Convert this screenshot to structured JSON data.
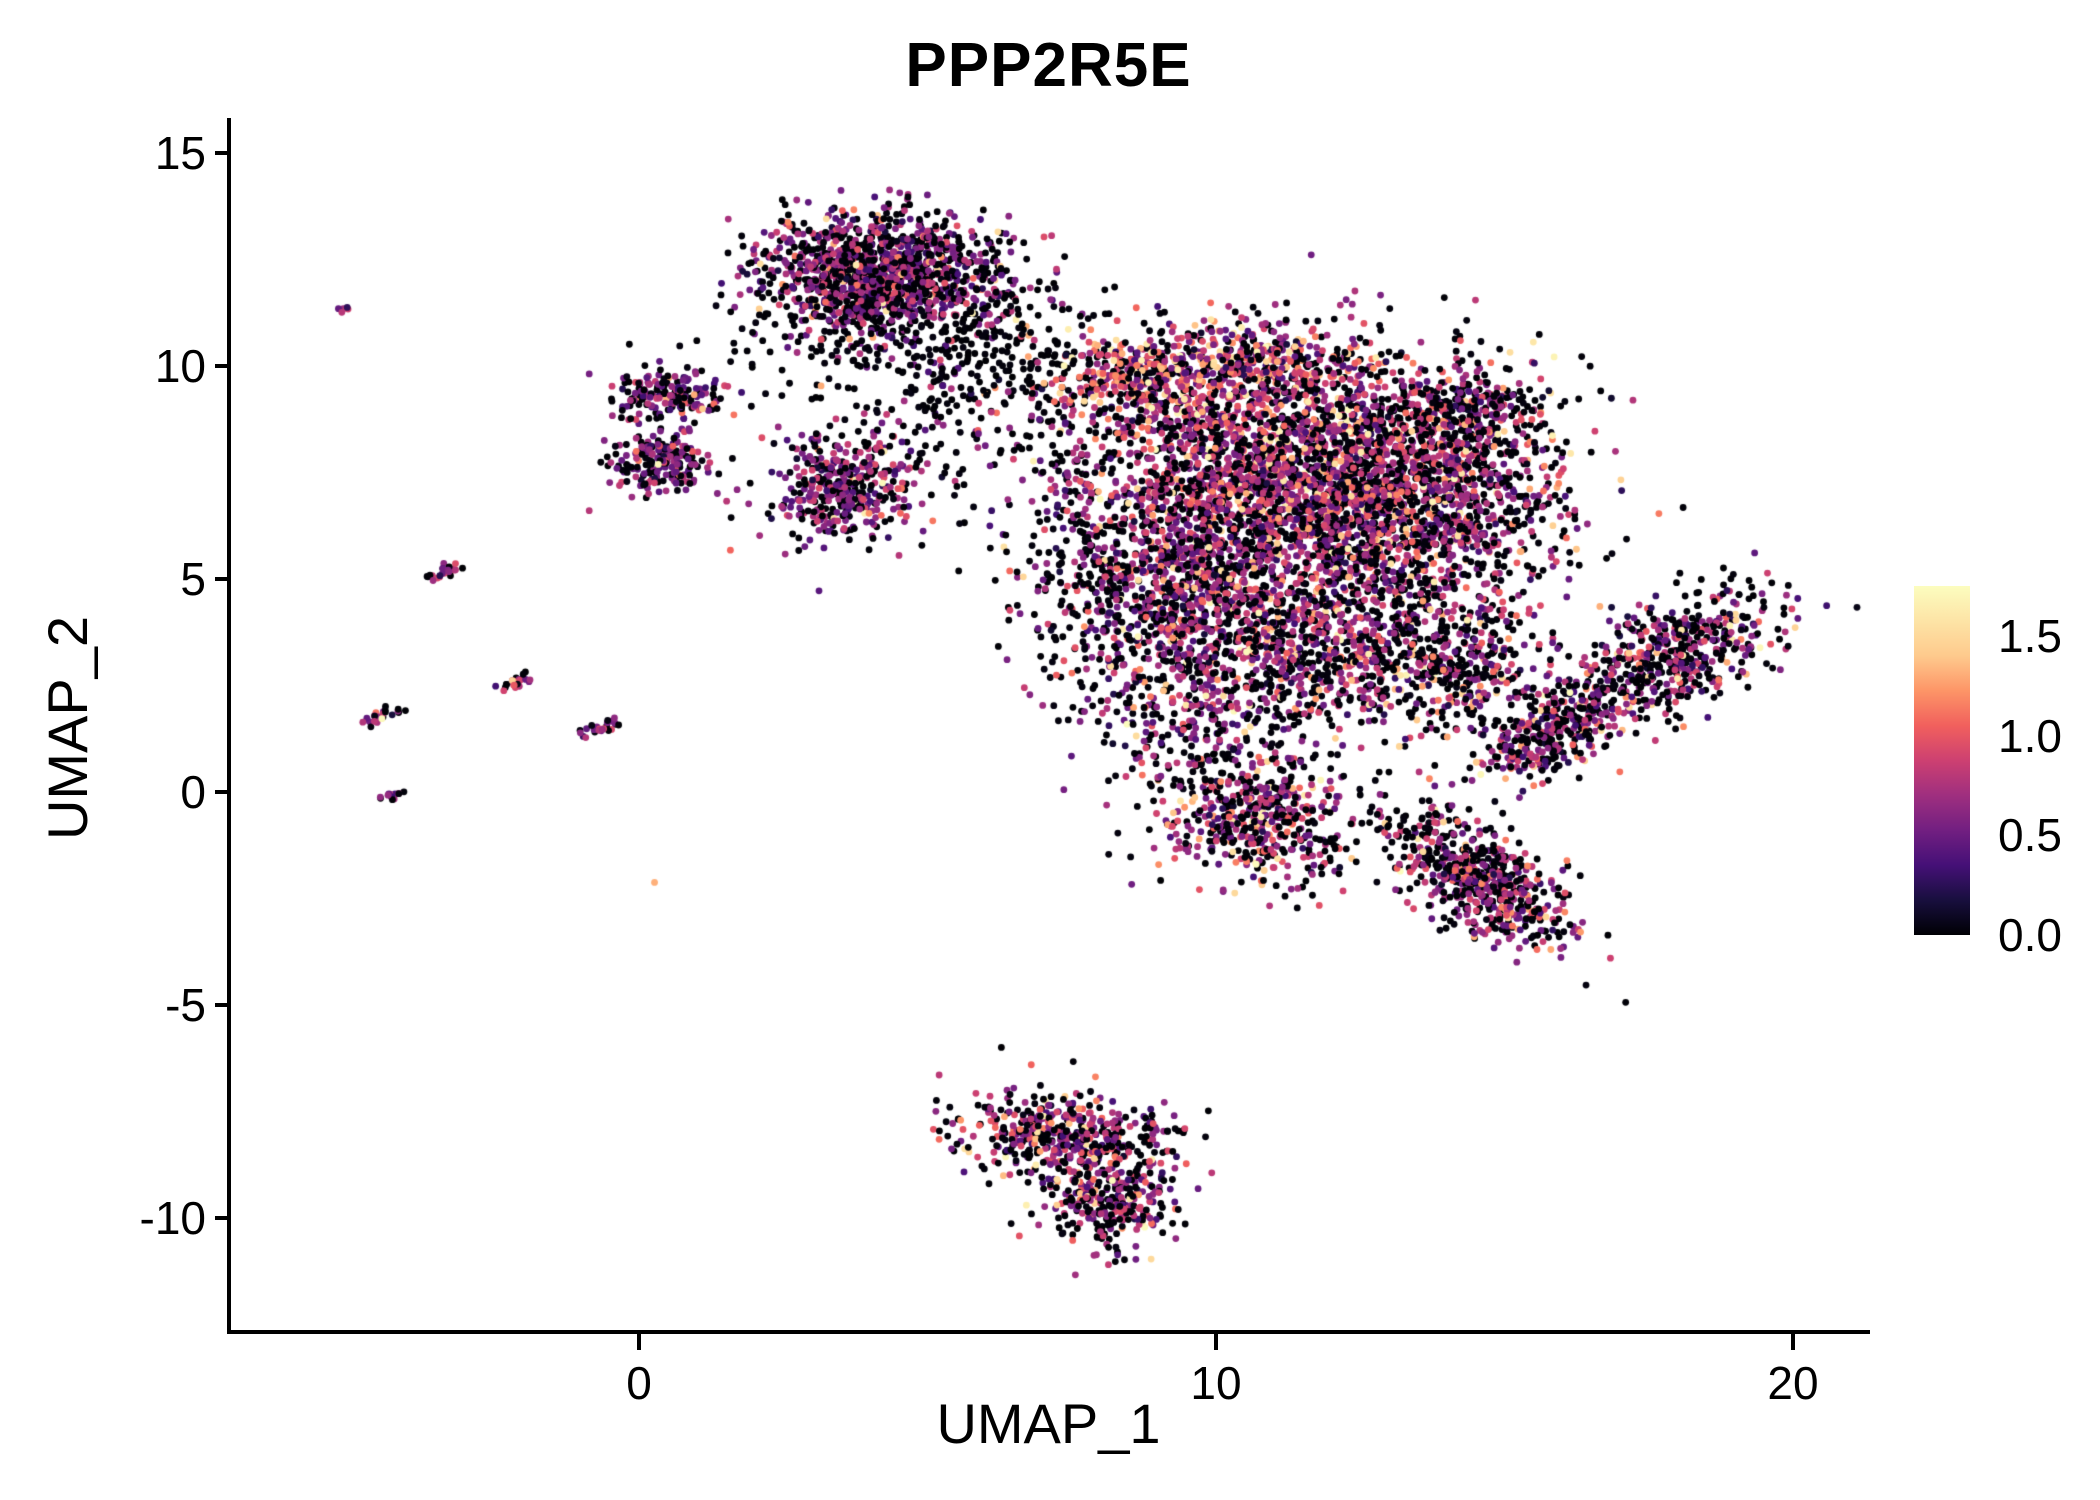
{
  "chart_data": {
    "type": "scatter",
    "title": "PPP2R5E",
    "xlabel": "UMAP_1",
    "ylabel": "UMAP_2",
    "xlim": [
      -7.1,
      21.3
    ],
    "ylim": [
      -12.6,
      15.8
    ],
    "xticks": [
      0,
      10,
      20
    ],
    "yticks": [
      -10,
      -5,
      0,
      5,
      10,
      15
    ],
    "grid": false,
    "point_radius": 3.4,
    "seed": 42,
    "legend": {
      "position": "right",
      "ticks": [
        0.0,
        0.5,
        1.0,
        1.5
      ],
      "domain": [
        0,
        1.75
      ],
      "colormap": "magma",
      "stops": [
        [
          0.0,
          "#000004"
        ],
        [
          0.1,
          "#180f3e"
        ],
        [
          0.2,
          "#451077"
        ],
        [
          0.3,
          "#721f81"
        ],
        [
          0.4,
          "#9f2f7f"
        ],
        [
          0.5,
          "#cd4071"
        ],
        [
          0.6,
          "#f1605d"
        ],
        [
          0.7,
          "#fd9567"
        ],
        [
          0.8,
          "#feca8d"
        ],
        [
          0.9,
          "#fde4a6"
        ],
        [
          1.0,
          "#fcfdbf"
        ]
      ]
    },
    "clusters": [
      {
        "name": "top-mid-dense",
        "cx": 4.2,
        "cy": 12.2,
        "sx": 1.05,
        "sy": 0.7,
        "angle": -6,
        "n": 1200,
        "zero": 0.42,
        "mu": 0.62,
        "sd": 0.22,
        "high": 0.03
      },
      {
        "name": "top-mid-halo",
        "cx": 4.5,
        "cy": 11.0,
        "sx": 1.5,
        "sy": 1.0,
        "angle": 0,
        "n": 300,
        "zero": 0.85,
        "mu": 0.6,
        "sd": 0.22,
        "high": 0.01
      },
      {
        "name": "left-blob-upper",
        "cx": 0.5,
        "cy": 9.3,
        "sx": 0.55,
        "sy": 0.3,
        "angle": 0,
        "n": 180,
        "zero": 0.45,
        "mu": 0.62,
        "sd": 0.22,
        "high": 0.02
      },
      {
        "name": "left-blob-lower",
        "cx": 0.4,
        "cy": 7.7,
        "sx": 0.42,
        "sy": 0.34,
        "angle": 0,
        "n": 200,
        "zero": 0.4,
        "mu": 0.66,
        "sd": 0.22,
        "high": 0.02
      },
      {
        "name": "mid-blob",
        "cx": 3.45,
        "cy": 7.2,
        "sx": 0.6,
        "sy": 0.7,
        "angle": 0,
        "n": 380,
        "zero": 0.38,
        "mu": 0.68,
        "sd": 0.22,
        "high": 0.02
      },
      {
        "name": "bridge-sparse-top",
        "cx": 6.3,
        "cy": 9.8,
        "sx": 1.3,
        "sy": 1.0,
        "angle": 0,
        "n": 170,
        "zero": 0.82,
        "mu": 0.55,
        "sd": 0.2,
        "high": 0.01
      },
      {
        "name": "bridge-sparse-mid",
        "cx": 5.6,
        "cy": 8.0,
        "sx": 1.2,
        "sy": 1.3,
        "angle": 0,
        "n": 90,
        "zero": 0.8,
        "mu": 0.55,
        "sd": 0.2,
        "high": 0.01
      },
      {
        "name": "left-column-sparse",
        "cx": 7.5,
        "cy": 4.8,
        "sx": 0.55,
        "sy": 1.9,
        "angle": 0,
        "n": 130,
        "zero": 0.72,
        "mu": 0.6,
        "sd": 0.22,
        "high": 0.01
      },
      {
        "name": "main-core",
        "cx": 11.6,
        "cy": 7.3,
        "sx": 1.7,
        "sy": 1.5,
        "angle": 0,
        "n": 2700,
        "zero": 0.36,
        "mu": 0.72,
        "sd": 0.24,
        "high": 0.06
      },
      {
        "name": "main-left-arm",
        "cx": 9.0,
        "cy": 5.3,
        "sx": 0.95,
        "sy": 1.7,
        "angle": 0,
        "n": 800,
        "zero": 0.45,
        "mu": 0.68,
        "sd": 0.24,
        "high": 0.04
      },
      {
        "name": "main-topleft-hot",
        "cx": 8.9,
        "cy": 9.7,
        "sx": 1.0,
        "sy": 0.6,
        "angle": 0,
        "n": 450,
        "zero": 0.3,
        "mu": 0.8,
        "sd": 0.28,
        "high": 0.13
      },
      {
        "name": "main-top-hot",
        "cx": 10.8,
        "cy": 10.0,
        "sx": 0.9,
        "sy": 0.5,
        "angle": 0,
        "n": 300,
        "zero": 0.3,
        "mu": 0.78,
        "sd": 0.26,
        "high": 0.1
      },
      {
        "name": "main-right",
        "cx": 14.0,
        "cy": 7.0,
        "sx": 1.15,
        "sy": 1.3,
        "angle": 0,
        "n": 750,
        "zero": 0.5,
        "mu": 0.7,
        "sd": 0.24,
        "high": 0.05
      },
      {
        "name": "main-topright-lobe",
        "cx": 14.2,
        "cy": 9.0,
        "sx": 0.7,
        "sy": 0.45,
        "angle": 0,
        "n": 220,
        "zero": 0.5,
        "mu": 0.68,
        "sd": 0.22,
        "high": 0.04
      },
      {
        "name": "main-lower",
        "cx": 11.3,
        "cy": 3.6,
        "sx": 1.5,
        "sy": 1.15,
        "angle": 0,
        "n": 900,
        "zero": 0.42,
        "mu": 0.7,
        "sd": 0.24,
        "high": 0.06
      },
      {
        "name": "main-lowerright",
        "cx": 13.9,
        "cy": 3.0,
        "sx": 1.0,
        "sy": 0.95,
        "angle": 0,
        "n": 450,
        "zero": 0.5,
        "mu": 0.68,
        "sd": 0.24,
        "high": 0.05
      },
      {
        "name": "neck-sparse",
        "cx": 9.6,
        "cy": 1.6,
        "sx": 0.8,
        "sy": 0.7,
        "angle": 0,
        "n": 140,
        "zero": 0.6,
        "mu": 0.65,
        "sd": 0.22,
        "high": 0.02
      },
      {
        "name": "wing-outer",
        "cx": 18.0,
        "cy": 3.2,
        "sx": 1.1,
        "sy": 0.55,
        "angle": 38,
        "n": 520,
        "zero": 0.5,
        "mu": 0.66,
        "sd": 0.24,
        "high": 0.05
      },
      {
        "name": "wing-inner",
        "cx": 15.9,
        "cy": 1.4,
        "sx": 0.75,
        "sy": 0.4,
        "angle": 38,
        "n": 330,
        "zero": 0.5,
        "mu": 0.66,
        "sd": 0.24,
        "high": 0.05
      },
      {
        "name": "sub-left",
        "cx": 10.7,
        "cy": -0.7,
        "sx": 0.85,
        "sy": 0.75,
        "angle": -15,
        "n": 520,
        "zero": 0.42,
        "mu": 0.7,
        "sd": 0.24,
        "high": 0.07
      },
      {
        "name": "sub-right",
        "cx": 14.5,
        "cy": -2.0,
        "sx": 1.05,
        "sy": 0.5,
        "angle": -45,
        "n": 620,
        "zero": 0.45,
        "mu": 0.7,
        "sd": 0.24,
        "high": 0.05
      },
      {
        "name": "bottom-main",
        "cx": 7.3,
        "cy": -8.1,
        "sx": 0.95,
        "sy": 0.5,
        "angle": -8,
        "n": 430,
        "zero": 0.4,
        "mu": 0.7,
        "sd": 0.24,
        "high": 0.05
      },
      {
        "name": "bottom-tail",
        "cx": 8.2,
        "cy": -9.5,
        "sx": 0.55,
        "sy": 0.6,
        "angle": -35,
        "n": 300,
        "zero": 0.4,
        "mu": 0.7,
        "sd": 0.24,
        "high": 0.05
      },
      {
        "name": "bottom-right-dots",
        "cx": 9.35,
        "cy": -7.85,
        "sx": 0.25,
        "sy": 0.12,
        "angle": 0,
        "n": 10,
        "zero": 0.7,
        "mu": 0.5,
        "sd": 0.2,
        "high": 0.0
      },
      {
        "name": "streak-far-top",
        "cx": -5.1,
        "cy": 11.35,
        "sx": 0.07,
        "sy": 0.05,
        "angle": 30,
        "n": 6,
        "zero": 0.2,
        "mu": 0.7,
        "sd": 0.2,
        "high": 0.0
      },
      {
        "name": "streak-1",
        "cx": -3.4,
        "cy": 5.15,
        "sx": 0.18,
        "sy": 0.06,
        "angle": 25,
        "n": 26,
        "zero": 0.25,
        "mu": 0.7,
        "sd": 0.22,
        "high": 0.02
      },
      {
        "name": "streak-2",
        "cx": -2.1,
        "cy": 2.6,
        "sx": 0.16,
        "sy": 0.06,
        "angle": 30,
        "n": 24,
        "zero": 0.25,
        "mu": 0.7,
        "sd": 0.22,
        "high": 0.02
      },
      {
        "name": "streak-3",
        "cx": -4.55,
        "cy": 1.75,
        "sx": 0.16,
        "sy": 0.07,
        "angle": 25,
        "n": 22,
        "zero": 0.3,
        "mu": 0.7,
        "sd": 0.22,
        "high": 0.02
      },
      {
        "name": "streak-4",
        "cx": -0.65,
        "cy": 1.5,
        "sx": 0.18,
        "sy": 0.07,
        "angle": 20,
        "n": 26,
        "zero": 0.3,
        "mu": 0.7,
        "sd": 0.22,
        "high": 0.02
      },
      {
        "name": "streak-5",
        "cx": -4.3,
        "cy": -0.1,
        "sx": 0.12,
        "sy": 0.05,
        "angle": 20,
        "n": 14,
        "zero": 0.3,
        "mu": 0.7,
        "sd": 0.22,
        "high": 0.0
      },
      {
        "name": "lone-orange-dot",
        "cx": 0.3,
        "cy": -2.1,
        "sx": 0.02,
        "sy": 0.02,
        "angle": 0,
        "n": 1,
        "zero": 0.0,
        "mu": 1.25,
        "sd": 0.05,
        "high": 0.0
      }
    ]
  }
}
